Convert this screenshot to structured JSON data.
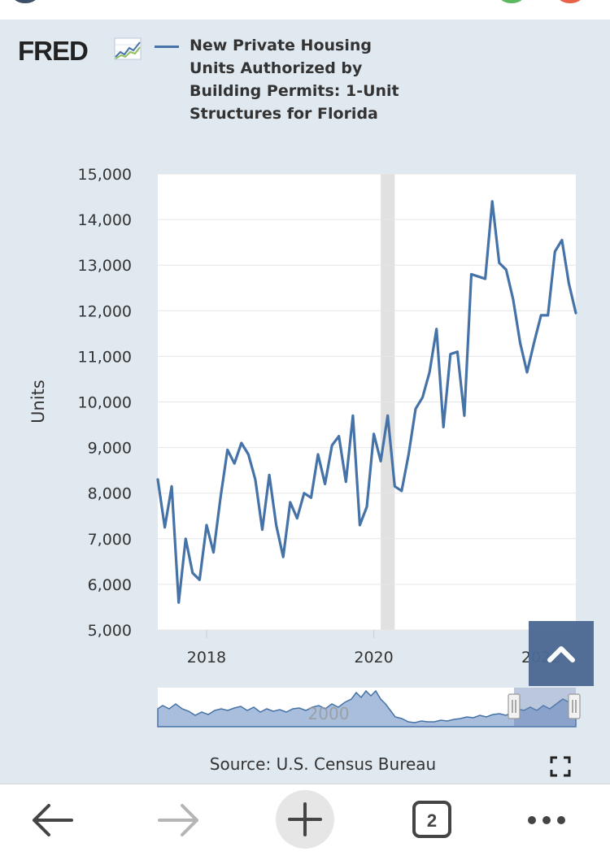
{
  "logo": {
    "text": "FRED"
  },
  "legend": {
    "label": "New Private Housing Units Authorized by Building Permits: 1-Unit Structures for Florida",
    "color": "#4572a7"
  },
  "source": "Source: U.S. Census Bureau",
  "navigator": {
    "tick_label": "2000"
  },
  "browser": {
    "tab_count": "2"
  },
  "icons": [
    "fred-graph-icon",
    "fullscreen-icon",
    "chevron-up-icon",
    "back-arrow-icon",
    "forward-arrow-icon",
    "plus-icon",
    "tab-count-icon",
    "more-icon"
  ],
  "colors": {
    "card_bg": "#e1e9f0",
    "plot_bg": "#ffffff",
    "series": "#4572a7",
    "recession": "#e1e1e1",
    "scroll_button": "#4d6a94"
  },
  "chart_data": {
    "type": "line",
    "ylabel": "Units",
    "xlabel": "",
    "ylim": [
      5000,
      15000
    ],
    "yticks": [
      "5,000",
      "6,000",
      "7,000",
      "8,000",
      "9,000",
      "10,000",
      "11,000",
      "12,000",
      "13,000",
      "14,000",
      "15,000"
    ],
    "xticks": [
      "2018",
      "2020",
      "2022"
    ],
    "grid": "horizontal",
    "recession": [
      "2020-02",
      "2020-04"
    ],
    "series": [
      {
        "name": "New Private Housing Units Authorized by Building Permits: 1-Unit Structures for Florida",
        "x": [
          "2017-06",
          "2017-07",
          "2017-08",
          "2017-09",
          "2017-10",
          "2017-11",
          "2017-12",
          "2018-01",
          "2018-02",
          "2018-03",
          "2018-04",
          "2018-05",
          "2018-06",
          "2018-07",
          "2018-08",
          "2018-09",
          "2018-10",
          "2018-11",
          "2018-12",
          "2019-01",
          "2019-02",
          "2019-03",
          "2019-04",
          "2019-05",
          "2019-06",
          "2019-07",
          "2019-08",
          "2019-09",
          "2019-10",
          "2019-11",
          "2019-12",
          "2020-01",
          "2020-02",
          "2020-03",
          "2020-04",
          "2020-05",
          "2020-06",
          "2020-07",
          "2020-08",
          "2020-09",
          "2020-10",
          "2020-11",
          "2020-12",
          "2021-01",
          "2021-02",
          "2021-03",
          "2021-04",
          "2021-05",
          "2021-06",
          "2021-07",
          "2021-08",
          "2021-09",
          "2021-10",
          "2021-11",
          "2021-12",
          "2022-01",
          "2022-02",
          "2022-03",
          "2022-04",
          "2022-05",
          "2022-06"
        ],
        "values": [
          8300,
          7250,
          8150,
          5600,
          7000,
          6250,
          6100,
          7300,
          6700,
          7900,
          8950,
          8650,
          9100,
          8850,
          8300,
          7200,
          8400,
          7300,
          6600,
          7800,
          7450,
          8000,
          7900,
          8850,
          8200,
          9050,
          9250,
          8250,
          9700,
          7300,
          7700,
          9300,
          8700,
          9700,
          8150,
          8050,
          8850,
          9850,
          10100,
          10650,
          11600,
          9450,
          11050,
          11100,
          9700,
          12800,
          12750,
          12700,
          14400,
          13050,
          12900,
          12250,
          11300,
          10650,
          11300,
          11900,
          11900,
          13300,
          13550,
          12600,
          11950
        ]
      }
    ]
  }
}
